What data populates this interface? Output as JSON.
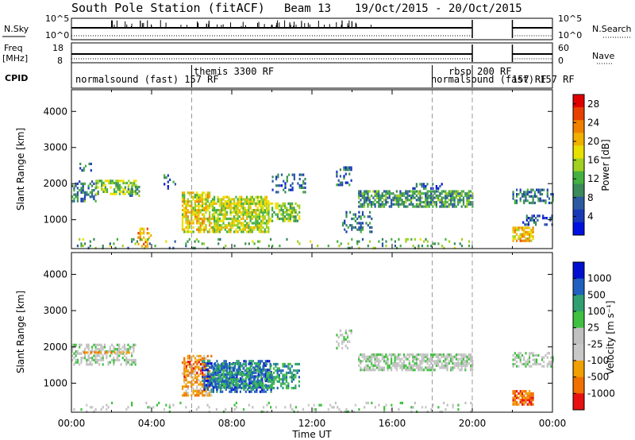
{
  "title": {
    "station": "South Pole Station (fitACF)",
    "beam": "Beam 13",
    "dates": "19/Oct/2015 - 20/Oct/2015"
  },
  "colors": {
    "power_scale": [
      "#0010e0",
      "#1838b8",
      "#2c5aa0",
      "#3a8a5a",
      "#44b040",
      "#a0d020",
      "#e8e000",
      "#f0b000",
      "#f08000",
      "#e84000",
      "#e00000"
    ],
    "velocity_scale": [
      "#0010d0",
      "#2060c0",
      "#30a070",
      "#40c040",
      "#c0c0c0",
      "#c8c8c8",
      "#f0a000",
      "#f07000",
      "#e81010"
    ]
  },
  "chart_data": [
    {
      "type": "line",
      "name": "top-status",
      "left_labels": {
        "nsky": "N.Sky",
        "nsky_top": "10^5",
        "nsky_bottom": "10^0",
        "freq": "Freq",
        "freq_unit": "[MHz]",
        "freq_top": "18",
        "freq_bottom": "8",
        "cpid": "CPID"
      },
      "right_labels": {
        "nsearch": "N.Search",
        "nsearch_top": "10^5",
        "nsearch_bottom": "10^0",
        "nave": "Nave",
        "nave_top": "60",
        "nave_bottom": "0"
      },
      "gap_hours": [
        20.0,
        22.0
      ]
    },
    {
      "type": "table",
      "name": "cpid-programs",
      "programs": [
        {
          "text": "normalsound (fast) 157 RF",
          "start": 0.0
        },
        {
          "text": "themis 3300 RF",
          "start": 6.0
        },
        {
          "text": "rbsp 200 RF",
          "start": 18.0
        },
        {
          "text": "normalsound (fast) 157 RF",
          "start": 18.0
        }
      ],
      "boundaries_hours": [
        6.0,
        18.0,
        20.0
      ]
    },
    {
      "type": "heatmap",
      "name": "power",
      "ylabel": "Slant Range [km]",
      "xlabel": "Time UT",
      "xlim": [
        0,
        24
      ],
      "ylim": [
        200,
        4600
      ],
      "y_ticks": [
        1000,
        2000,
        3000,
        4000
      ],
      "x_ticks": [
        "00:00",
        "04:00",
        "08:00",
        "12:00",
        "16:00",
        "20:00",
        "00:00"
      ],
      "colorbar_label": "Power [dB]",
      "colorbar_ticks": [
        "4",
        "8",
        "12",
        "16",
        "20",
        "24",
        "28"
      ],
      "colorbar_range": [
        0,
        30
      ],
      "echo_regions": [
        {
          "t0": 0.0,
          "t1": 1.2,
          "r0": 1550,
          "r1": 2100,
          "level": 9,
          "density": 0.55
        },
        {
          "t0": 0.4,
          "t1": 1.0,
          "r0": 2400,
          "r1": 2600,
          "level": 8,
          "density": 0.35
        },
        {
          "t0": 1.2,
          "t1": 3.2,
          "r0": 1750,
          "r1": 2150,
          "level": 14,
          "density": 0.6
        },
        {
          "t0": 2.8,
          "t1": 3.4,
          "r0": 1700,
          "r1": 2000,
          "level": 10,
          "density": 0.5
        },
        {
          "t0": 4.6,
          "t1": 5.2,
          "r0": 1900,
          "r1": 2300,
          "level": 7,
          "density": 0.35
        },
        {
          "t0": 3.3,
          "t1": 4.0,
          "r0": 300,
          "r1": 800,
          "level": 22,
          "density": 0.4
        },
        {
          "t0": 5.5,
          "t1": 7.0,
          "r0": 700,
          "r1": 1800,
          "level": 18,
          "density": 0.7
        },
        {
          "t0": 7.0,
          "t1": 9.8,
          "r0": 700,
          "r1": 1700,
          "level": 16,
          "density": 0.75
        },
        {
          "t0": 9.8,
          "t1": 11.4,
          "r0": 1000,
          "r1": 1500,
          "level": 14,
          "density": 0.6
        },
        {
          "t0": 10.0,
          "t1": 11.7,
          "r0": 1800,
          "r1": 2300,
          "level": 7,
          "density": 0.3
        },
        {
          "t0": 13.2,
          "t1": 14.0,
          "r0": 2000,
          "r1": 2500,
          "level": 7,
          "density": 0.35
        },
        {
          "t0": 13.5,
          "t1": 15.0,
          "r0": 700,
          "r1": 1300,
          "level": 8,
          "density": 0.3
        },
        {
          "t0": 14.3,
          "t1": 20.0,
          "r0": 1400,
          "r1": 1850,
          "level": 10,
          "density": 0.7
        },
        {
          "t0": 17.0,
          "t1": 18.5,
          "r0": 1900,
          "r1": 2050,
          "level": 6,
          "density": 0.3
        },
        {
          "t0": 22.0,
          "t1": 23.0,
          "r0": 450,
          "r1": 850,
          "level": 20,
          "density": 0.75
        },
        {
          "t0": 22.0,
          "t1": 24.0,
          "r0": 1500,
          "r1": 1900,
          "level": 8,
          "density": 0.5
        },
        {
          "t0": 22.5,
          "t1": 24.0,
          "r0": 900,
          "r1": 1200,
          "level": 6,
          "density": 0.4
        },
        {
          "t0": 0.0,
          "t1": 20.0,
          "r0": 250,
          "r1": 550,
          "level": 12,
          "density": 0.12
        }
      ],
      "gap_hours": [
        20.0,
        22.0
      ]
    },
    {
      "type": "heatmap",
      "name": "velocity",
      "ylabel": "Slant Range [km]",
      "xlabel": "Time UT",
      "xlim": [
        0,
        24
      ],
      "ylim": [
        200,
        4600
      ],
      "y_ticks": [
        1000,
        2000,
        3000,
        4000
      ],
      "x_ticks": [
        "00:00",
        "04:00",
        "08:00",
        "12:00",
        "16:00",
        "20:00",
        "00:00"
      ],
      "colorbar_label": "Velocity [m s⁻¹]",
      "colorbar_ticks": [
        "1000",
        "500",
        "100",
        "25",
        "-25",
        "-100",
        "-500",
        "-1000"
      ],
      "echo_regions": [
        {
          "t0": 0.0,
          "t1": 3.2,
          "r0": 1550,
          "r1": 2100,
          "level": 4,
          "density": 0.5
        },
        {
          "t0": 0.5,
          "t1": 3.0,
          "r0": 1880,
          "r1": 1920,
          "level": 6,
          "density": 0.6
        },
        {
          "t0": 5.5,
          "t1": 7.0,
          "r0": 700,
          "r1": 1800,
          "level": 6,
          "density": 0.5
        },
        {
          "t0": 6.5,
          "t1": 10.0,
          "r0": 800,
          "r1": 1700,
          "level": 1,
          "density": 0.6
        },
        {
          "t0": 7.0,
          "t1": 11.4,
          "r0": 900,
          "r1": 1600,
          "level": 2,
          "density": 0.55
        },
        {
          "t0": 5.6,
          "t1": 6.6,
          "r0": 1200,
          "r1": 1700,
          "level": 7,
          "density": 0.4
        },
        {
          "t0": 13.2,
          "t1": 14.0,
          "r0": 2000,
          "r1": 2500,
          "level": 4,
          "density": 0.3
        },
        {
          "t0": 14.3,
          "t1": 20.0,
          "r0": 1400,
          "r1": 1850,
          "level": 4,
          "density": 0.7
        },
        {
          "t0": 22.0,
          "t1": 23.0,
          "r0": 450,
          "r1": 850,
          "level": 7,
          "density": 0.8
        },
        {
          "t0": 22.0,
          "t1": 24.0,
          "r0": 1500,
          "r1": 1900,
          "level": 4,
          "density": 0.5
        },
        {
          "t0": 0.0,
          "t1": 20.0,
          "r0": 250,
          "r1": 550,
          "level": 4,
          "density": 0.1
        }
      ],
      "gap_hours": [
        20.0,
        22.0
      ]
    }
  ]
}
